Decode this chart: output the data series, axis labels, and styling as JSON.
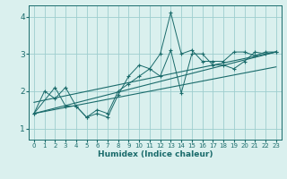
{
  "xlabel": "Humidex (Indice chaleur)",
  "bg_color": "#daf0ee",
  "grid_color": "#9ecece",
  "line_color": "#1a6b6b",
  "xlim": [
    -0.5,
    23.5
  ],
  "ylim": [
    0.7,
    4.3
  ],
  "xticks": [
    0,
    1,
    2,
    3,
    4,
    5,
    6,
    7,
    8,
    9,
    10,
    11,
    12,
    13,
    14,
    15,
    16,
    17,
    18,
    19,
    20,
    21,
    22,
    23
  ],
  "yticks": [
    1,
    2,
    3,
    4
  ],
  "line1_x": [
    0,
    1,
    2,
    3,
    4,
    5,
    6,
    7,
    8,
    9,
    10,
    11,
    12,
    13,
    14,
    15,
    16,
    17,
    18,
    19,
    20,
    21,
    22,
    23
  ],
  "line1_y": [
    1.4,
    2.0,
    1.8,
    2.1,
    1.6,
    1.3,
    1.4,
    1.3,
    1.9,
    2.4,
    2.7,
    2.6,
    3.0,
    4.1,
    3.0,
    3.1,
    2.8,
    2.8,
    2.8,
    3.05,
    3.05,
    2.95,
    3.05,
    3.05
  ],
  "line2_x": [
    0,
    2,
    3,
    4,
    5,
    6,
    7,
    8,
    9,
    10,
    11,
    12,
    13,
    14,
    15,
    16,
    17,
    18,
    19,
    20,
    21,
    22,
    23
  ],
  "line2_y": [
    1.4,
    2.1,
    1.6,
    1.6,
    1.3,
    1.5,
    1.4,
    2.0,
    2.2,
    2.4,
    2.6,
    2.4,
    3.1,
    1.95,
    3.0,
    3.0,
    2.7,
    2.7,
    2.6,
    2.8,
    3.05,
    3.0,
    3.05
  ],
  "trend1_x": [
    0,
    23
  ],
  "trend1_y": [
    1.4,
    3.05
  ],
  "trend2_x": [
    0,
    23
  ],
  "trend2_y": [
    1.4,
    2.65
  ],
  "trend3_x": [
    0,
    23
  ],
  "trend3_y": [
    1.7,
    3.05
  ]
}
